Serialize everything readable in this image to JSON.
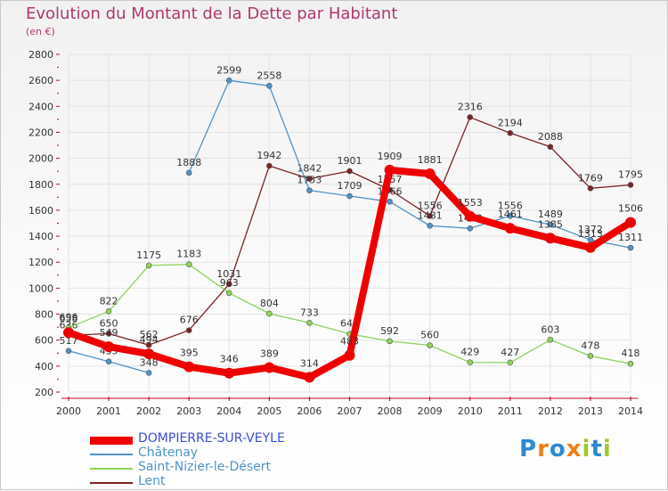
{
  "chart_data": {
    "type": "line",
    "title": "Evolution du Montant de la Dette par Habitant",
    "subtitle": "(en €)",
    "x": [
      "2000",
      "2001",
      "2002",
      "2003",
      "2004",
      "2005",
      "2006",
      "2007",
      "2008",
      "2009",
      "2010",
      "2011",
      "2012",
      "2013",
      "2014"
    ],
    "ylim": [
      200,
      2800
    ],
    "yticks": [
      200,
      400,
      600,
      800,
      1000,
      1200,
      1400,
      1600,
      1800,
      2000,
      2200,
      2400,
      2600,
      2800
    ],
    "grid": true,
    "legend_position": "bottom-left",
    "series": [
      {
        "name": "DOMPIERRE-SUR-VEYLE",
        "color": "#ee0000",
        "values": [
          658,
          549,
          494,
          395,
          346,
          389,
          314,
          483,
          1909,
          1881,
          1553,
          1461,
          1385,
          1313,
          1506
        ]
      },
      {
        "name": "Châtenay",
        "color": "#4f93c6",
        "values": [
          517,
          435,
          348,
          1888,
          2599,
          2558,
          1753,
          1709,
          1666,
          1481,
          1460,
          1556,
          1489,
          1372,
          1311
        ]
      },
      {
        "name": "Saint-Nizier-le-Désert",
        "color": "#8ed45a",
        "values": [
          696,
          822,
          1175,
          1183,
          963,
          804,
          733,
          648,
          592,
          560,
          429,
          427,
          603,
          478,
          418
        ]
      },
      {
        "name": "Lent",
        "color": "#7a2324",
        "values": [
          636,
          650,
          562,
          676,
          1031,
          1942,
          1842,
          1901,
          1757,
          1556,
          2316,
          2194,
          2088,
          1769,
          1795
        ]
      }
    ]
  },
  "logo": {
    "letters": [
      "P",
      "r",
      "o",
      "x",
      "i",
      "t",
      "i"
    ],
    "colors": [
      "#2d8ad4",
      "#ef7f1a",
      "#2d8ad4",
      "#ef7f1a",
      "#9cc92b",
      "#2d8ad4",
      "#9cc92b"
    ]
  }
}
